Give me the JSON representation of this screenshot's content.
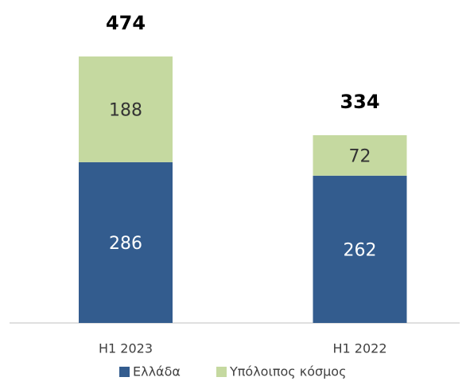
{
  "chart_data": {
    "type": "stacked_bar",
    "categories": [
      "H1 2023",
      "H1 2022"
    ],
    "series": [
      {
        "name": "Ελλάδα",
        "color": "#335c8e",
        "values": [
          286,
          262
        ]
      },
      {
        "name": "Υπόλοιπος κόσμος",
        "color": "#c5d9a0",
        "values": [
          188,
          72
        ]
      }
    ],
    "totals": [
      474,
      334
    ],
    "legend": "bottom"
  }
}
